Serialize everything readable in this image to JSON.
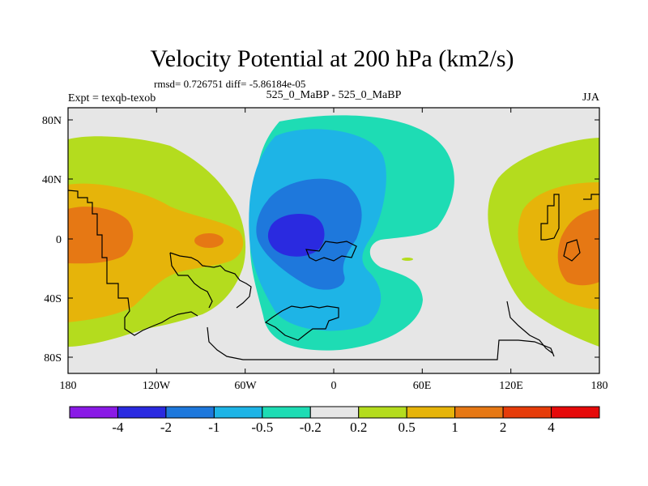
{
  "chart_data": {
    "type": "heatmap",
    "title": "Velocity Potential at 200 hPa (km2/s)",
    "subtitle_stats": "rmsd= 0.726751 diff= -5.86184e-05",
    "left_label": "Expt = texqb-texob",
    "center_label": "525_0_MaBP - 525_0_MaBP",
    "right_label": "JJA",
    "x_ticks": [
      "180",
      "120W",
      "60W",
      "0",
      "60E",
      "120E",
      "180"
    ],
    "y_ticks": [
      "80N",
      "40N",
      "0",
      "40S",
      "80S"
    ],
    "xlim": [
      -180,
      180
    ],
    "ylim": [
      -90,
      90
    ],
    "colorbar": {
      "levels": [
        "-4",
        "-2",
        "-1",
        "-0.5",
        "-0.2",
        "0.2",
        "0.5",
        "1",
        "2",
        "4"
      ],
      "colors": [
        "#8a1ae6",
        "#2a2ae0",
        "#1e78dc",
        "#1eb4e6",
        "#1edcb4",
        "#e6e6e6",
        "#b4dc1e",
        "#e6b40a",
        "#e67814",
        "#e63c0a",
        "#e60a0a"
      ]
    },
    "regions": [
      {
        "level": "-0.5",
        "description": "negative center over South America / Atlantic",
        "center_lon": -15,
        "center_lat": 10
      },
      {
        "level": "-2",
        "description": "minimum",
        "center_lon": -30,
        "center_lat": 0
      },
      {
        "level": "1",
        "description": "positive center over Pacific",
        "center_lon": -160,
        "center_lat": 10
      },
      {
        "level": "1",
        "description": "positive center over Maritime Continent",
        "center_lon": 160,
        "center_lat": 0
      }
    ]
  }
}
